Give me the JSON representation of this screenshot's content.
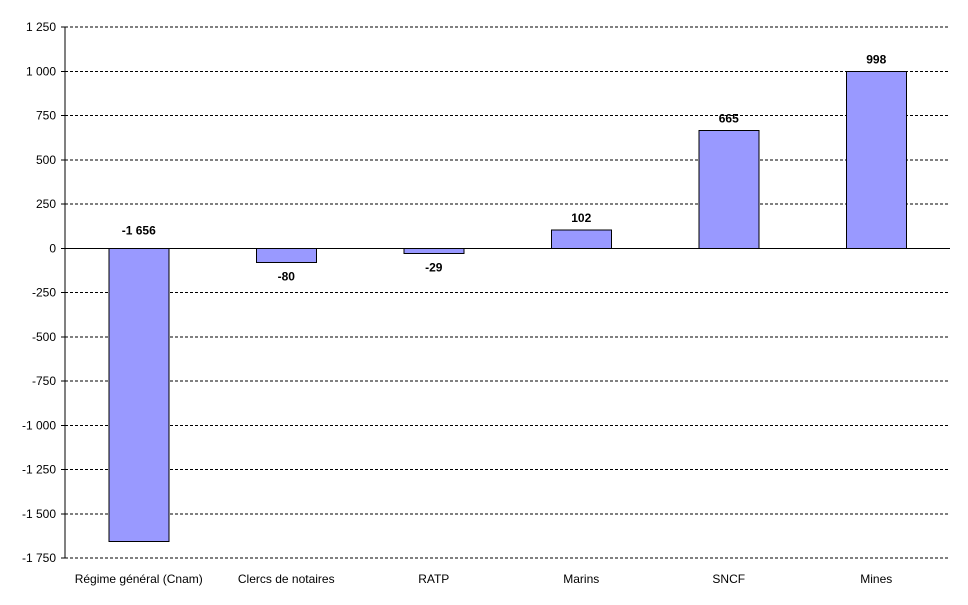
{
  "chart_data": {
    "type": "bar",
    "title": "",
    "xlabel": "",
    "ylabel": "",
    "categories": [
      "Régime général (Cnam)",
      "Clercs de notaires",
      "RATP",
      "Marins",
      "SNCF",
      "Mines"
    ],
    "values": [
      -1656,
      -80,
      -29,
      102,
      665,
      998
    ],
    "data_labels": [
      "-1 656",
      "-80",
      "-29",
      "102",
      "665",
      "998"
    ],
    "ylim": [
      -1750,
      1250
    ],
    "yticks": [
      1250,
      1000,
      750,
      500,
      250,
      0,
      -250,
      -500,
      -750,
      -1000,
      -1250,
      -1500,
      -1750
    ],
    "ytick_labels": [
      "1 250",
      "1 000",
      "750",
      "500",
      "250",
      "0",
      "-250",
      "-500",
      "-750",
      "-1 000",
      "-1 250",
      "-1 500",
      "-1 750"
    ],
    "grid": true,
    "legend": "none",
    "bar_color": "#9999ff",
    "bar_border_color": "#000000"
  }
}
